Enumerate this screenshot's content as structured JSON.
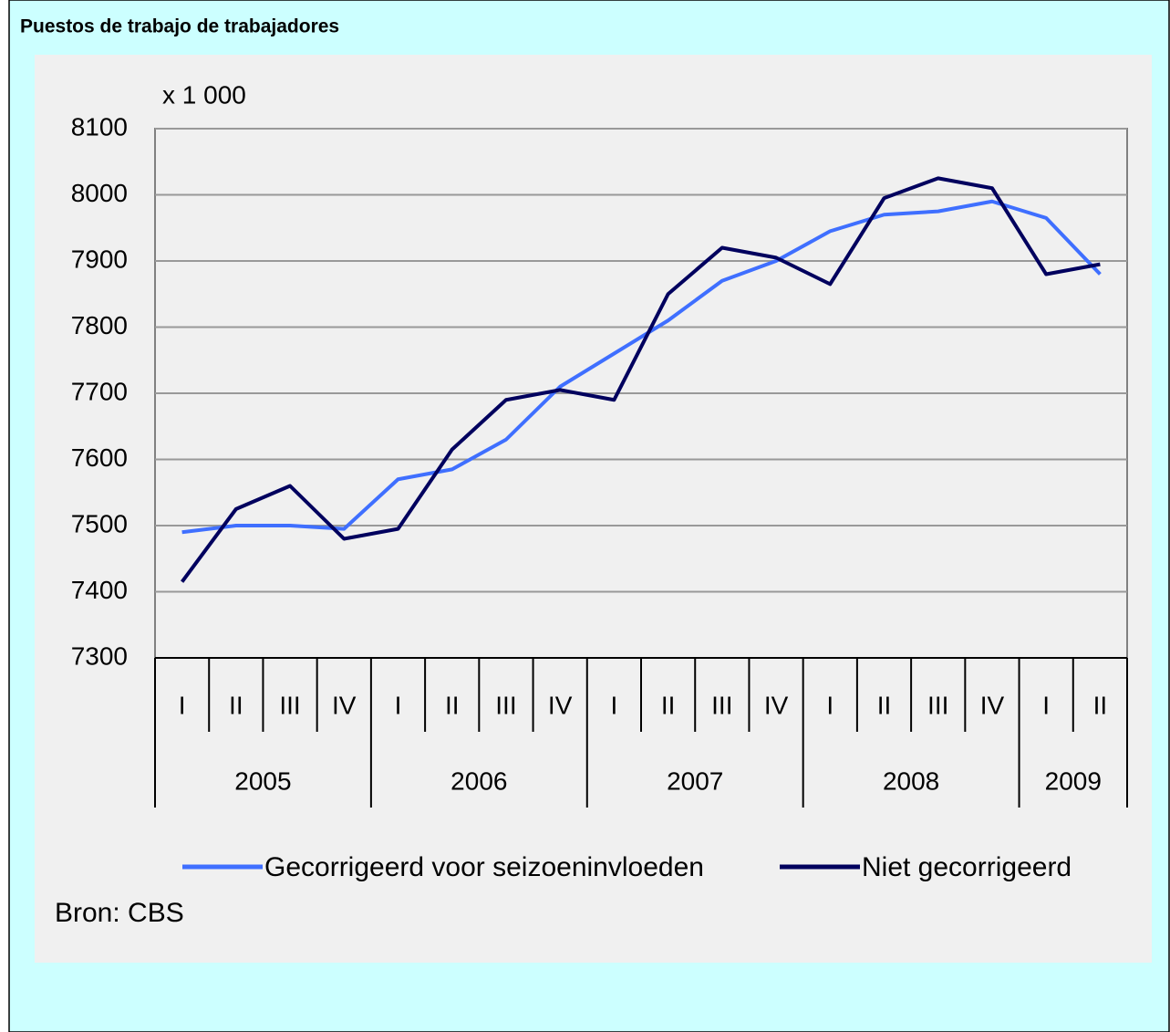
{
  "chart_data": {
    "type": "line",
    "title": "Puestos de trabajo de trabajadores",
    "unit_label": "x 1 000",
    "source": "Bron: CBS",
    "categories": [
      "I",
      "II",
      "III",
      "IV",
      "I",
      "II",
      "III",
      "IV",
      "I",
      "II",
      "III",
      "IV",
      "I",
      "II",
      "III",
      "IV",
      "I",
      "II"
    ],
    "year_groups": [
      {
        "label": "2005",
        "quarters": 4
      },
      {
        "label": "2006",
        "quarters": 4
      },
      {
        "label": "2007",
        "quarters": 4
      },
      {
        "label": "2008",
        "quarters": 4
      },
      {
        "label": "2009",
        "quarters": 2
      }
    ],
    "series": [
      {
        "name": "Gecorrigeerd voor seizoeninvloeden",
        "color": "#3f6fff",
        "values": [
          7490,
          7500,
          7500,
          7495,
          7570,
          7585,
          7630,
          7710,
          7760,
          7810,
          7870,
          7900,
          7945,
          7970,
          7975,
          7990,
          7965,
          7880
        ]
      },
      {
        "name": "Niet gecorrigeerd",
        "color": "#00005e",
        "values": [
          7415,
          7525,
          7560,
          7480,
          7495,
          7615,
          7690,
          7705,
          7690,
          7850,
          7920,
          7905,
          7865,
          7995,
          8025,
          8010,
          7880,
          7895
        ]
      }
    ],
    "ylim": [
      7300,
      8100
    ],
    "yticks": [
      7300,
      7400,
      7500,
      7600,
      7700,
      7800,
      7900,
      8000,
      8100
    ],
    "grid": true
  }
}
